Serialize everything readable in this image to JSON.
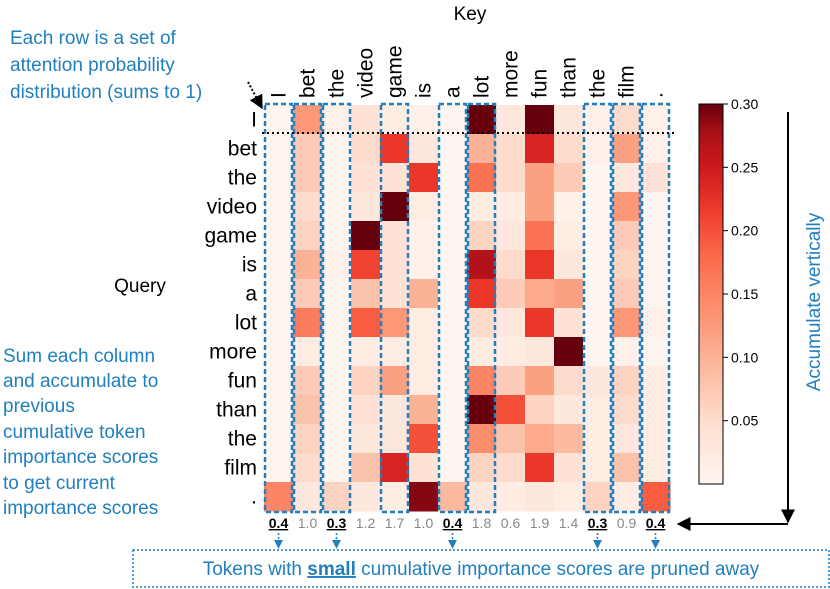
{
  "chart_data": {
    "type": "heatmap",
    "x_title": "Key",
    "y_title": "Query",
    "keys": [
      "I",
      "bet",
      "the",
      "video",
      "game",
      "is",
      "a",
      "lot",
      "more",
      "fun",
      "than",
      "the",
      "film",
      "."
    ],
    "queries": [
      "I",
      "bet",
      "the",
      "video",
      "game",
      "is",
      "a",
      "lot",
      "more",
      "fun",
      "than",
      "the",
      "film",
      "."
    ],
    "values": [
      [
        0.0,
        0.13,
        0.01,
        0.04,
        0.02,
        0.01,
        0.0,
        0.3,
        0.03,
        0.3,
        0.03,
        0.01,
        0.05,
        0.01
      ],
      [
        0.0,
        0.07,
        0.0,
        0.05,
        0.22,
        0.03,
        0.0,
        0.1,
        0.05,
        0.24,
        0.05,
        0.01,
        0.12,
        0.01
      ],
      [
        0.0,
        0.07,
        0.0,
        0.04,
        0.04,
        0.22,
        0.0,
        0.17,
        0.05,
        0.12,
        0.07,
        0.0,
        0.03,
        0.04
      ],
      [
        0.0,
        0.05,
        0.0,
        0.03,
        0.3,
        0.02,
        0.0,
        0.02,
        0.02,
        0.12,
        0.01,
        0.0,
        0.13,
        0.0
      ],
      [
        0.0,
        0.06,
        0.0,
        0.3,
        0.04,
        0.01,
        0.0,
        0.06,
        0.03,
        0.17,
        0.02,
        0.0,
        0.07,
        0.0
      ],
      [
        0.0,
        0.1,
        0.01,
        0.21,
        0.04,
        0.01,
        0.0,
        0.27,
        0.05,
        0.22,
        0.03,
        0.0,
        0.06,
        0.0
      ],
      [
        0.0,
        0.07,
        0.0,
        0.08,
        0.04,
        0.1,
        0.0,
        0.22,
        0.07,
        0.11,
        0.12,
        0.0,
        0.07,
        0.0
      ],
      [
        0.0,
        0.16,
        0.0,
        0.19,
        0.13,
        0.02,
        0.0,
        0.05,
        0.03,
        0.22,
        0.04,
        0.0,
        0.13,
        0.01
      ],
      [
        0.0,
        0.02,
        0.0,
        0.02,
        0.02,
        0.02,
        0.0,
        0.02,
        0.02,
        0.03,
        0.3,
        0.0,
        0.01,
        0.0
      ],
      [
        0.0,
        0.07,
        0.0,
        0.06,
        0.12,
        0.02,
        0.0,
        0.15,
        0.07,
        0.12,
        0.05,
        0.03,
        0.06,
        0.02
      ],
      [
        0.0,
        0.08,
        0.0,
        0.04,
        0.03,
        0.1,
        0.0,
        0.3,
        0.2,
        0.06,
        0.03,
        0.02,
        0.05,
        0.02
      ],
      [
        0.0,
        0.06,
        0.0,
        0.03,
        0.03,
        0.2,
        0.0,
        0.14,
        0.08,
        0.11,
        0.09,
        0.02,
        0.03,
        0.02
      ],
      [
        0.0,
        0.05,
        0.0,
        0.08,
        0.24,
        0.04,
        0.0,
        0.06,
        0.05,
        0.22,
        0.04,
        0.02,
        0.08,
        0.02
      ],
      [
        0.15,
        0.03,
        0.06,
        0.03,
        0.02,
        0.29,
        0.09,
        0.03,
        0.02,
        0.03,
        0.02,
        0.06,
        0.02,
        0.19
      ]
    ],
    "column_scores": [
      "0.4",
      "1.0",
      "0.3",
      "1.2",
      "1.7",
      "1.0",
      "0.4",
      "1.8",
      "0.6",
      "1.9",
      "1.4",
      "0.3",
      "0.9",
      "0.4"
    ],
    "pruned_columns": [
      0,
      2,
      6,
      11,
      13
    ],
    "colorbar": {
      "vmin": 0.0,
      "vmax": 0.3,
      "ticks": [
        "0.05",
        "0.10",
        "0.15",
        "0.20",
        "0.25",
        "0.30"
      ]
    }
  },
  "annotations": {
    "row_note": [
      "Each row is a set of",
      "attention probability",
      "distribution (sums to 1)"
    ],
    "column_note": [
      "Sum each column",
      "and accumulate to",
      "previous",
      "cumulative token",
      "importance scores",
      "to get current",
      "importance scores"
    ],
    "vertical_note": "Accumulate vertically",
    "pruned_note_pre": "Tokens with ",
    "pruned_note_bold": "small",
    "pruned_note_post": " cumulative importance scores are pruned away"
  },
  "colors": {
    "accent_blue": "#1f7fbf",
    "low": "#fff5f0",
    "high": "#67000d"
  }
}
